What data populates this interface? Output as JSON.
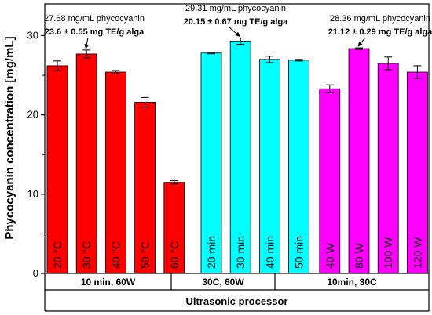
{
  "chart_data": {
    "type": "bar",
    "ylabel": "Phycocyanin concentration [mg/mL]",
    "ylim": [
      0,
      34
    ],
    "yticks": [
      0,
      10,
      20,
      30
    ],
    "grid": false,
    "categories": [
      "20 °C",
      "30 °C",
      "40 °C",
      "50 °C",
      "60 °C",
      "20 min",
      "30 min",
      "40 min",
      "50 min",
      "40 W",
      "80 W",
      "100 W",
      "120 W"
    ],
    "values": [
      26.2,
      27.68,
      25.4,
      21.6,
      11.5,
      27.8,
      29.31,
      27.0,
      26.9,
      23.3,
      28.36,
      26.5,
      25.4
    ],
    "errors": [
      0.6,
      0.5,
      0.2,
      0.6,
      0.2,
      0.1,
      0.4,
      0.4,
      0.1,
      0.5,
      0.1,
      0.8,
      0.8
    ],
    "bar_colors": [
      "#ff0000",
      "#ff0000",
      "#ff0000",
      "#ff0000",
      "#ff0000",
      "#00ffff",
      "#00ffff",
      "#00ffff",
      "#00ffff",
      "#ff00ff",
      "#ff00ff",
      "#ff00ff",
      "#ff00ff"
    ],
    "groups": [
      {
        "label": "10 min, 60W",
        "start": 0,
        "end": 4
      },
      {
        "label": "30C, 60W",
        "start": 5,
        "end": 8
      },
      {
        "label": "10min, 30C",
        "start": 9,
        "end": 12
      }
    ],
    "footer": "Ultrasonic processor",
    "annotations": [
      {
        "bar": 1,
        "line1": "27.68 mg/mL phycocyanin",
        "line2": "23.6 ± 0.55 mg TE/g alga"
      },
      {
        "bar": 6,
        "line1": "29.31 mg/mL phycocyanin",
        "line2": "20.15 ± 0.67 mg TE/g alga"
      },
      {
        "bar": 10,
        "line1": "28.36 mg/mL phycocyanin",
        "line2": "21.12 ± 0.29 mg TE/g alga"
      }
    ]
  }
}
